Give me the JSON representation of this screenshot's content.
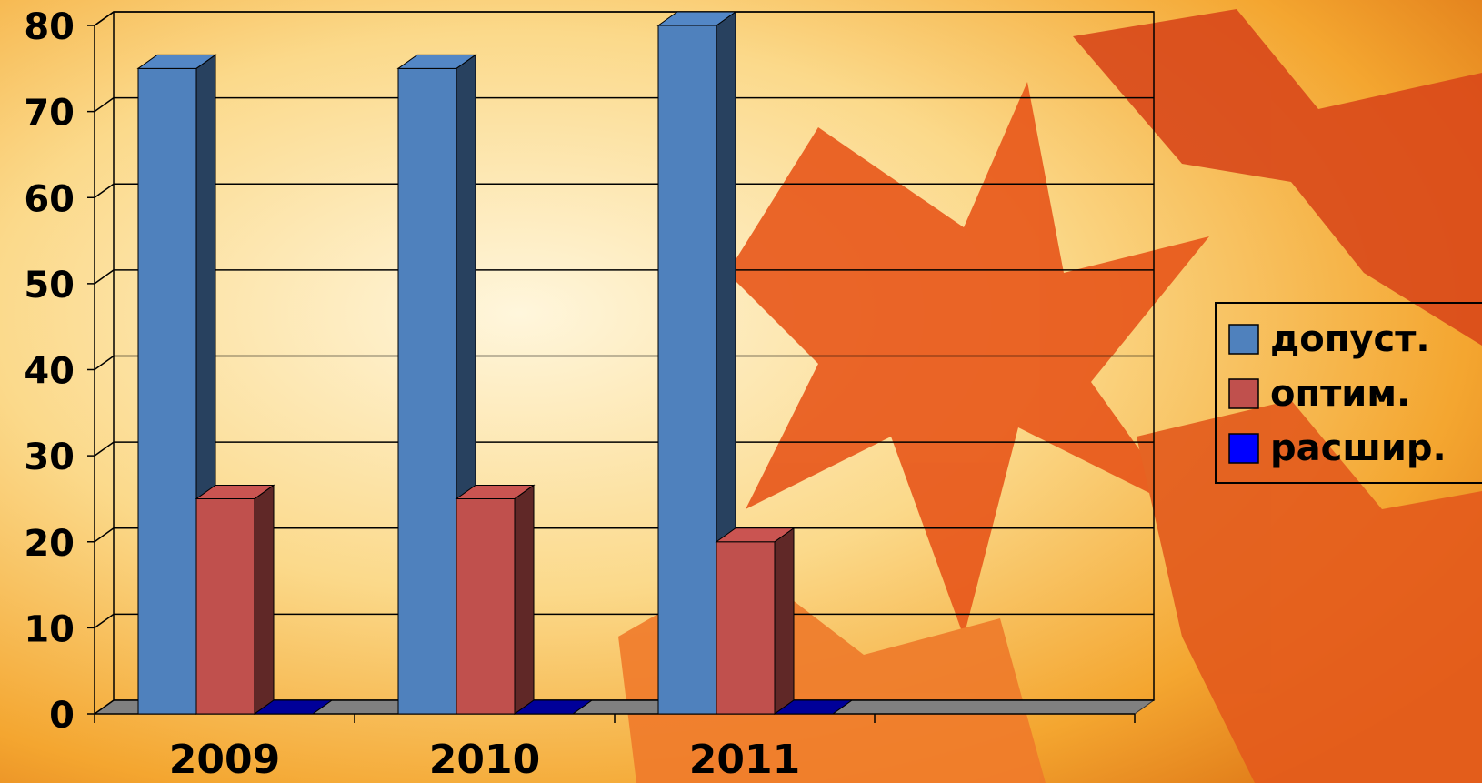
{
  "chart_data": {
    "type": "bar3d",
    "categories": [
      "2009",
      "2010",
      "2011",
      null
    ],
    "series": [
      {
        "name": "допуст.",
        "color": "#4f81bd",
        "values": [
          75,
          75,
          80,
          null
        ]
      },
      {
        "name": "оптим.",
        "color": "#c0504d",
        "values": [
          25,
          25,
          20,
          null
        ]
      },
      {
        "name": "расшир.",
        "color": "#0000ff",
        "values": [
          0,
          0,
          0,
          null
        ]
      }
    ],
    "ylim": [
      0,
      80
    ],
    "yticks": [
      0,
      10,
      20,
      30,
      40,
      50,
      60,
      70,
      80
    ],
    "grid": true,
    "legend": "right"
  }
}
